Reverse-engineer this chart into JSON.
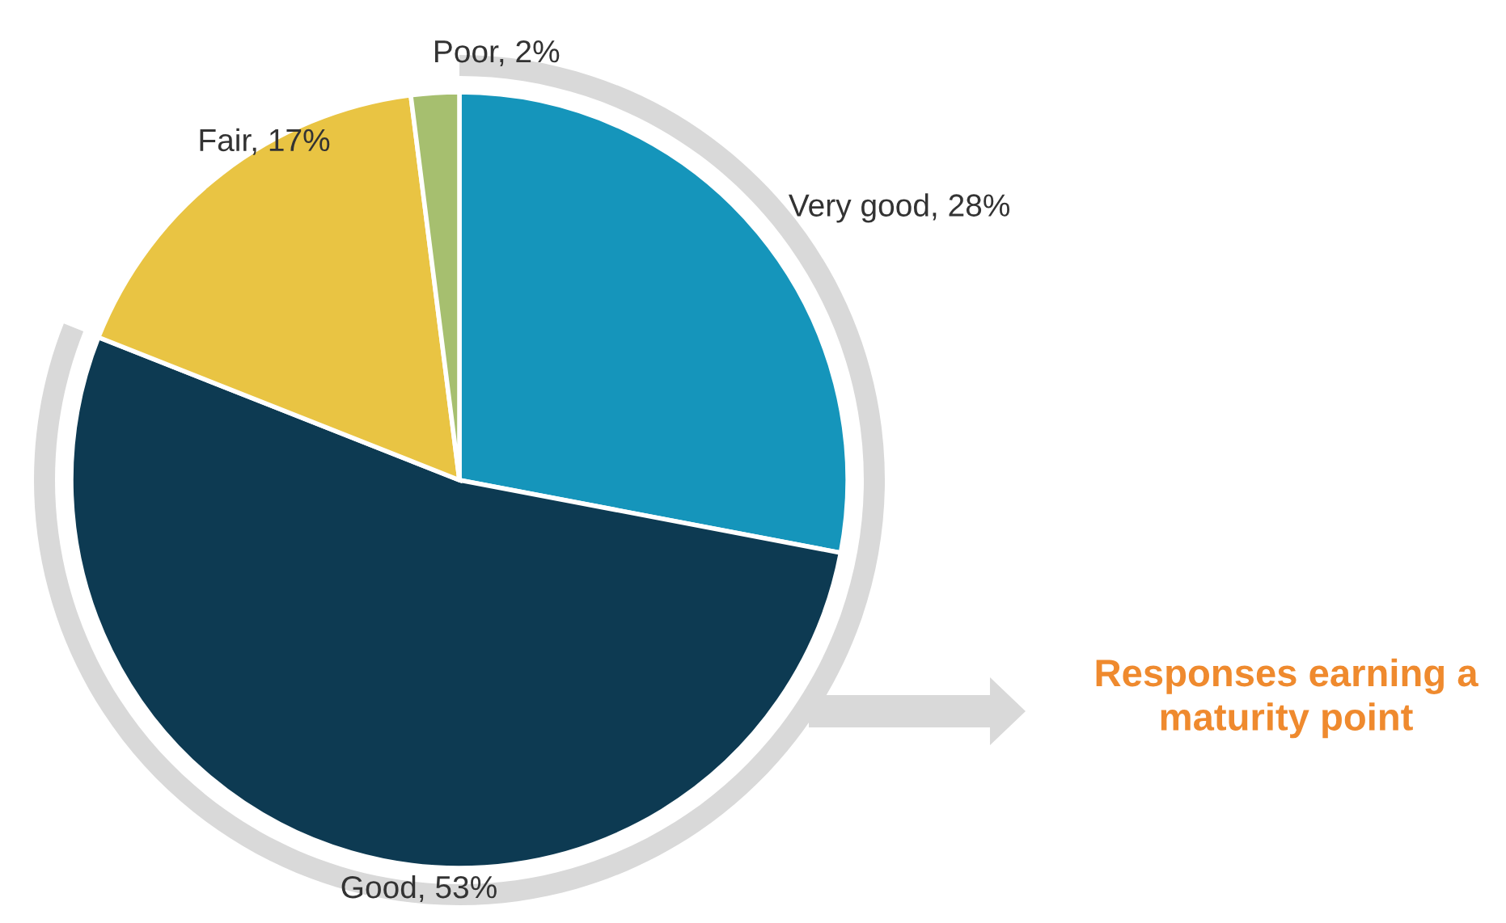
{
  "chart_data": {
    "type": "pie",
    "categories": [
      "Very good",
      "Good",
      "Fair",
      "Poor"
    ],
    "values": [
      28,
      53,
      17,
      2
    ],
    "value_labels": [
      "28%",
      "53%",
      "17%",
      "2%"
    ],
    "colors": [
      "#1595bb",
      "#0d3a52",
      "#e9c443",
      "#a6bf6f"
    ],
    "annotations": [
      "Responses earning a\nmaturity point"
    ],
    "legend": false
  }
}
